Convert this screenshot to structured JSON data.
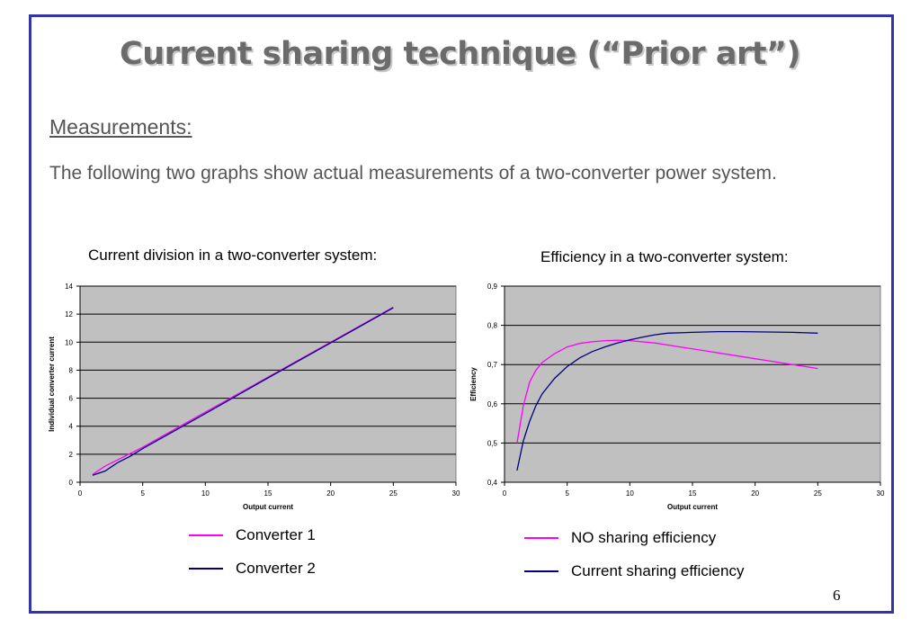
{
  "slide": {
    "title": "Current sharing technique (“Prior art”)",
    "heading": "Measurements:",
    "paragraph": "The following two graphs show actual measurements of a two-converter power system.",
    "page_number": "6"
  },
  "colors": {
    "frame": "#3333aa",
    "magenta": "#ff00ff",
    "navy": "#000080",
    "plot_bg": "#c0c0c0"
  },
  "chart_data": [
    {
      "type": "line",
      "title": "Current division in a two-converter system:",
      "xlabel": "Output current",
      "ylabel": "Individual converter current",
      "xlim": [
        0,
        30
      ],
      "ylim": [
        0,
        14
      ],
      "xticks": [
        0,
        5,
        10,
        15,
        20,
        25,
        30
      ],
      "yticks": [
        0,
        2,
        4,
        6,
        8,
        10,
        12,
        14
      ],
      "grid": true,
      "legend": "below",
      "series": [
        {
          "name": "Converter 1",
          "color": "#ff00ff",
          "x": [
            1,
            2,
            3,
            4,
            5,
            7,
            10,
            15,
            20,
            25
          ],
          "y": [
            0.55,
            1.15,
            1.6,
            2.05,
            2.5,
            3.5,
            5.0,
            7.5,
            10.0,
            12.5
          ]
        },
        {
          "name": "Converter 2",
          "color": "#000080",
          "x": [
            1,
            2,
            3,
            4,
            5,
            7,
            10,
            15,
            20,
            25
          ],
          "y": [
            0.5,
            0.8,
            1.4,
            1.85,
            2.4,
            3.4,
            4.9,
            7.45,
            9.95,
            12.45
          ]
        }
      ]
    },
    {
      "type": "line",
      "title": "Efficiency in a two-converter system:",
      "xlabel": "Output current",
      "ylabel": "Efficiency",
      "xlim": [
        0,
        30
      ],
      "ylim": [
        0.4,
        0.9
      ],
      "xticks": [
        0,
        5,
        10,
        15,
        20,
        25,
        30
      ],
      "yticks": [
        0.4,
        0.5,
        0.6,
        0.7,
        0.8,
        0.9
      ],
      "tick_format": "comma-decimal",
      "grid": true,
      "legend": "below",
      "series": [
        {
          "name": "NO sharing efficiency",
          "color": "#ff00ff",
          "x": [
            1,
            1.5,
            2,
            2.5,
            3,
            4,
            5,
            6,
            7,
            8,
            9,
            10,
            12,
            14,
            16,
            18,
            20,
            22,
            24,
            25
          ],
          "y": [
            0.5,
            0.595,
            0.655,
            0.685,
            0.705,
            0.728,
            0.745,
            0.754,
            0.758,
            0.761,
            0.762,
            0.761,
            0.755,
            0.745,
            0.735,
            0.725,
            0.715,
            0.705,
            0.695,
            0.69
          ]
        },
        {
          "name": "Current sharing efficiency",
          "color": "#000080",
          "x": [
            1,
            1.5,
            2,
            2.5,
            3,
            4,
            5,
            6,
            7,
            8,
            9,
            10,
            11,
            12,
            13,
            15,
            17,
            19,
            21,
            23,
            25
          ],
          "y": [
            0.43,
            0.505,
            0.555,
            0.595,
            0.625,
            0.665,
            0.695,
            0.717,
            0.733,
            0.745,
            0.755,
            0.763,
            0.77,
            0.776,
            0.78,
            0.782,
            0.784,
            0.784,
            0.783,
            0.782,
            0.78
          ]
        }
      ]
    }
  ]
}
